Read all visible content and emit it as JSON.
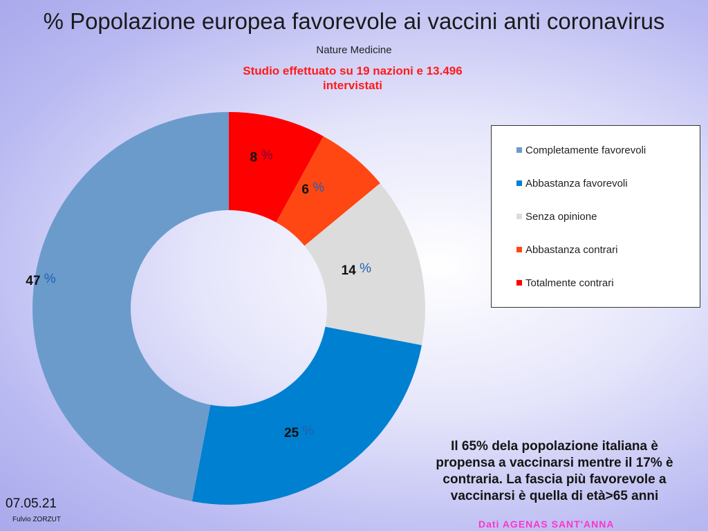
{
  "header": {
    "title": "% Popolazione europea favorevole ai vaccini anti coronavirus",
    "subtitle": "Nature Medicine",
    "study_line1": "Studio effettuato su 19 nazioni e 13.496",
    "study_line2": "intervistati"
  },
  "chart_data": {
    "type": "pie",
    "variant": "donut",
    "title": "% Popolazione europea favorevole ai vaccini anti coronavirus",
    "labels": [
      "Totalmente contrari",
      "Abbastanza contrari",
      "Senza opinione",
      "Abbastanza favorevoli",
      "Completamente favorevoli"
    ],
    "values": [
      8,
      6,
      14,
      25,
      47
    ],
    "colors": [
      "#ff0000",
      "#ff4713",
      "#dcdcdc",
      "#0080d0",
      "#6b9bcb"
    ],
    "value_suffix": "%",
    "legend_position": "right"
  },
  "legend": {
    "items": [
      {
        "label": "Completamente favorevoli",
        "color": "#6b9bcb"
      },
      {
        "label": "Abbastanza favorevoli",
        "color": "#0080d0"
      },
      {
        "label": "Senza opinione",
        "color": "#dcdcdc"
      },
      {
        "label": "Abbastanza contrari",
        "color": "#ff4713"
      },
      {
        "label": "Totalmente contrari",
        "color": "#ff0000"
      }
    ]
  },
  "note": {
    "line1": "Il 65% dela popolazione italiana è",
    "line2": "propensa a vaccinarsi mentre il 17% è",
    "line3": "contraria. La fascia più favorevole a",
    "line4": "vaccinarsi è quella di età>65 anni"
  },
  "source": "Dati AGENAS  SANT'ANNA",
  "footer": {
    "date": "07.05.21",
    "author": "Fulvio ZORZUT"
  }
}
